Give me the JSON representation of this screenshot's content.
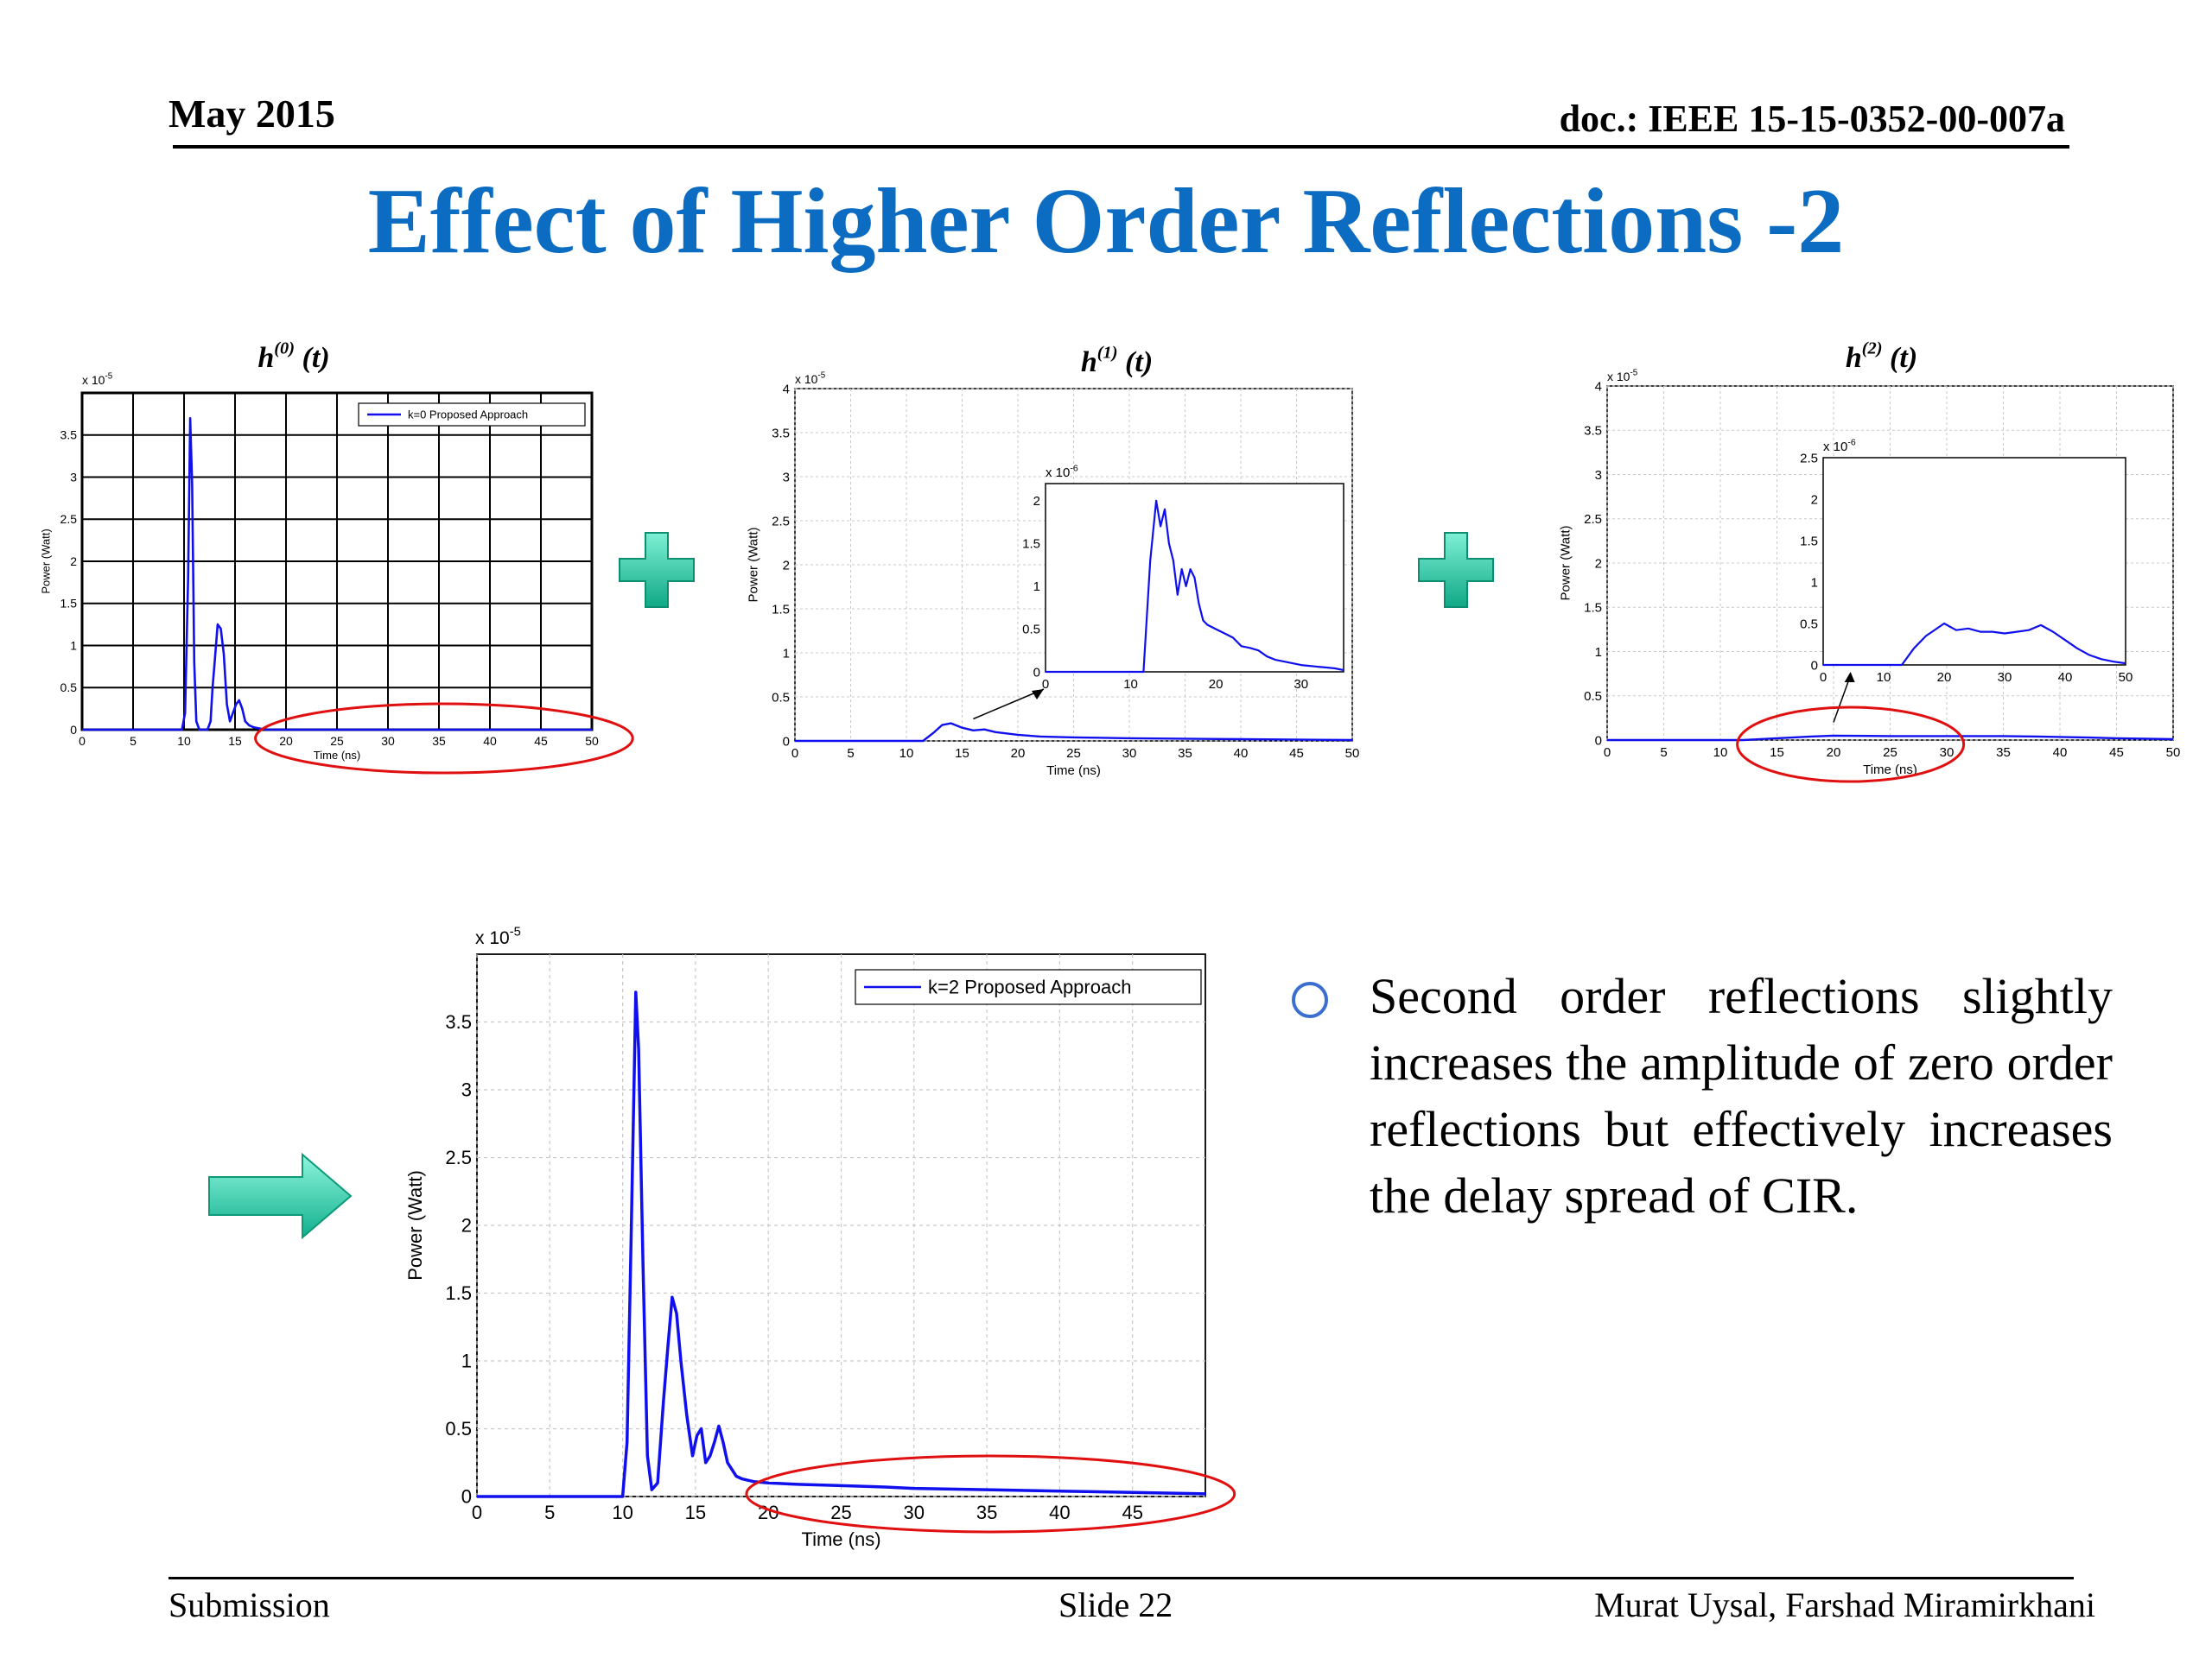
{
  "header": {
    "date": "May 2015",
    "doc_id": "doc.: IEEE 15-15-0352-00-007a"
  },
  "title": "Effect of Higher Order Reflections -2",
  "bullet": {
    "text": "Second order reflections slightly increases the amplitude of zero order reflections but effectively increases the delay spread of CIR."
  },
  "footer": {
    "left": "Submission",
    "center": "Slide 22",
    "right": "Murat Uysal, Farshad Miramirkhani"
  },
  "colors": {
    "title": "#0b6cc2",
    "series": "#1010ee",
    "ellipse": "#e01010",
    "plus": "#1fbfa0",
    "arrow": "#1fcfa6"
  },
  "icons": [
    "plus-icon",
    "right-arrow-icon",
    "circle-bullet-icon"
  ],
  "chart_data": [
    {
      "type": "line",
      "title": "h(0)(t)",
      "title_main": "h",
      "title_sup": "(0)",
      "title_arg": "(t)",
      "exponent": "x 10-5",
      "xlabel": "Time (ns)",
      "ylabel": "Power (Watt)",
      "xlim": [
        0,
        50
      ],
      "ylim": [
        0,
        4e-05
      ],
      "xticks": [
        0,
        5,
        10,
        15,
        20,
        25,
        30,
        35,
        40,
        45,
        50
      ],
      "yticks": [
        0,
        0.5,
        1,
        1.5,
        2,
        2.5,
        3,
        3.5
      ],
      "grid": true,
      "legend": "k=0 Proposed Approach",
      "legend_position": "top-right",
      "x": [
        0,
        9.8,
        10.1,
        10.4,
        10.6,
        10.8,
        11.0,
        11.2,
        11.5,
        11.8,
        12.3,
        12.6,
        12.8,
        13.0,
        13.3,
        13.6,
        13.9,
        14.2,
        14.5,
        14.8,
        15.1,
        15.4,
        15.7,
        16.0,
        16.4,
        16.8,
        17.2,
        17.6,
        18.0,
        20,
        30,
        40,
        50
      ],
      "y": [
        0,
        0,
        2e-06,
        1.8e-05,
        3.7e-05,
        2.9e-05,
        8e-06,
        1e-06,
        0,
        0,
        0,
        1e-06,
        5e-06,
        8e-06,
        1.25e-05,
        1.2e-05,
        9e-06,
        3e-06,
        1e-06,
        2e-06,
        3e-06,
        3.5e-06,
        2.5e-06,
        1e-06,
        5e-07,
        3e-07,
        2e-07,
        1e-07,
        0,
        0,
        0,
        0,
        0
      ],
      "highlight_ellipse_x": [
        17,
        54
      ]
    },
    {
      "type": "line",
      "title": "h(1)(t)",
      "title_main": "h",
      "title_sup": "(1)",
      "title_arg": "(t)",
      "exponent": "x 10-5",
      "xlabel": "Time (ns)",
      "ylabel": "Power (Watt)",
      "xlim": [
        0,
        50
      ],
      "ylim": [
        0,
        4e-05
      ],
      "xticks": [
        0,
        5,
        10,
        15,
        20,
        25,
        30,
        35,
        40,
        45,
        50
      ],
      "yticks": [
        0,
        0.5,
        1,
        1.5,
        2,
        2.5,
        3,
        3.5,
        4
      ],
      "grid": true,
      "x": [
        0,
        11.5,
        12.5,
        13.2,
        14,
        15,
        16,
        17,
        18,
        20,
        22,
        25,
        30,
        40,
        50
      ],
      "y": [
        0,
        0,
        1e-06,
        1.8e-06,
        2e-06,
        1.5e-06,
        1.2e-06,
        1.3e-06,
        1e-06,
        7e-07,
        5e-07,
        4e-07,
        3e-07,
        2e-07,
        1e-07
      ],
      "inset": {
        "exponent": "x 10-6",
        "xlim": [
          0,
          35
        ],
        "ylim": [
          0,
          2.2e-06
        ],
        "xticks": [
          0,
          10,
          20,
          30
        ],
        "yticks": [
          0,
          0.5,
          1,
          1.5,
          2
        ],
        "x": [
          0,
          11.5,
          12.3,
          13.0,
          13.5,
          14.0,
          14.5,
          15.0,
          15.5,
          16.0,
          16.5,
          17.0,
          17.5,
          18.0,
          18.5,
          19.0,
          20,
          21,
          22,
          23,
          24,
          25,
          26,
          27,
          28,
          29,
          30,
          31,
          32,
          33,
          34,
          35
        ],
        "y": [
          0,
          0,
          1.3e-06,
          2e-06,
          1.7e-06,
          1.9e-06,
          1.5e-06,
          1.3e-06,
          9e-07,
          1.2e-06,
          1e-06,
          1.2e-06,
          1.1e-06,
          8e-07,
          6e-07,
          5.5e-07,
          5e-07,
          4.5e-07,
          4e-07,
          3e-07,
          2.8e-07,
          2.5e-07,
          1.8e-07,
          1.4e-07,
          1.2e-07,
          1e-07,
          8e-08,
          7e-08,
          6e-08,
          5e-08,
          4e-08,
          2e-08
        ]
      }
    },
    {
      "type": "line",
      "title": "h(2)(t)",
      "title_main": "h",
      "title_sup": "(2)",
      "title_arg": "(t)",
      "exponent": "x 10-5",
      "xlabel": "Time (ns)",
      "ylabel": "Power (Watt)",
      "xlim": [
        0,
        50
      ],
      "ylim": [
        0,
        4e-05
      ],
      "xticks": [
        0,
        5,
        10,
        15,
        20,
        25,
        30,
        35,
        40,
        45,
        50
      ],
      "yticks": [
        0,
        0.5,
        1,
        1.5,
        2,
        2.5,
        3,
        3.5,
        4
      ],
      "grid": true,
      "x": [
        0,
        12,
        15,
        18,
        20,
        25,
        30,
        35,
        38,
        42,
        45,
        50
      ],
      "y": [
        0,
        0,
        2e-07,
        4e-07,
        5e-07,
        4.5e-07,
        4.5e-07,
        4.5e-07,
        4e-07,
        3e-07,
        2e-07,
        1e-07
      ],
      "inset": {
        "exponent": "x 10-6",
        "xlim": [
          0,
          50
        ],
        "ylim": [
          0,
          2.5e-06
        ],
        "xticks": [
          0,
          10,
          20,
          30,
          40,
          50
        ],
        "yticks": [
          0,
          0.5,
          1,
          1.5,
          2,
          2.5
        ],
        "x": [
          0,
          13,
          15,
          17,
          18,
          20,
          22,
          24,
          26,
          28,
          30,
          32,
          34,
          36,
          38,
          40,
          42,
          44,
          46,
          48,
          50
        ],
        "y": [
          0,
          0,
          2e-07,
          3.5e-07,
          4e-07,
          5e-07,
          4.2e-07,
          4.4e-07,
          4e-07,
          4e-07,
          3.8e-07,
          4e-07,
          4.2e-07,
          4.8e-07,
          4e-07,
          3e-07,
          2e-07,
          1.2e-07,
          7e-08,
          4e-08,
          2e-08
        ]
      },
      "highlight_ellipse_x": [
        11.5,
        31.5
      ]
    },
    {
      "type": "line",
      "title": "",
      "exponent": "x 10-5",
      "xlabel": "Time (ns)",
      "ylabel": "Power (Watt)",
      "xlim": [
        0,
        50
      ],
      "ylim": [
        0,
        4e-05
      ],
      "xticks": [
        0,
        5,
        10,
        15,
        20,
        25,
        30,
        35,
        40,
        45
      ],
      "yticks": [
        0,
        0.5,
        1,
        1.5,
        2,
        2.5,
        3,
        3.5
      ],
      "grid": true,
      "legend": "k=2 Proposed Approach",
      "legend_position": "top-right",
      "x": [
        0,
        10.0,
        10.3,
        10.6,
        10.9,
        11.1,
        11.4,
        11.7,
        12.0,
        12.4,
        12.8,
        13.1,
        13.4,
        13.7,
        14.0,
        14.4,
        14.8,
        15.1,
        15.4,
        15.7,
        16.0,
        16.3,
        16.6,
        16.9,
        17.2,
        17.5,
        17.8,
        18.2,
        18.6,
        19.0,
        20,
        22,
        25,
        28,
        30,
        35,
        40,
        45,
        50
      ],
      "y": [
        0,
        0,
        4e-06,
        2e-05,
        3.72e-05,
        3.3e-05,
        1.7e-05,
        3e-06,
        5e-07,
        1e-06,
        7e-06,
        1.1e-05,
        1.47e-05,
        1.35e-05,
        1e-05,
        6e-06,
        3e-06,
        4.5e-06,
        5e-06,
        2.5e-06,
        3e-06,
        4e-06,
        5.2e-06,
        4e-06,
        2.5e-06,
        2e-06,
        1.5e-06,
        1.3e-06,
        1.2e-06,
        1.1e-06,
        1e-06,
        9e-07,
        8e-07,
        7e-07,
        6e-07,
        5e-07,
        4e-07,
        3e-07,
        2e-07
      ],
      "highlight_ellipse_x": [
        18.5,
        52
      ]
    }
  ]
}
